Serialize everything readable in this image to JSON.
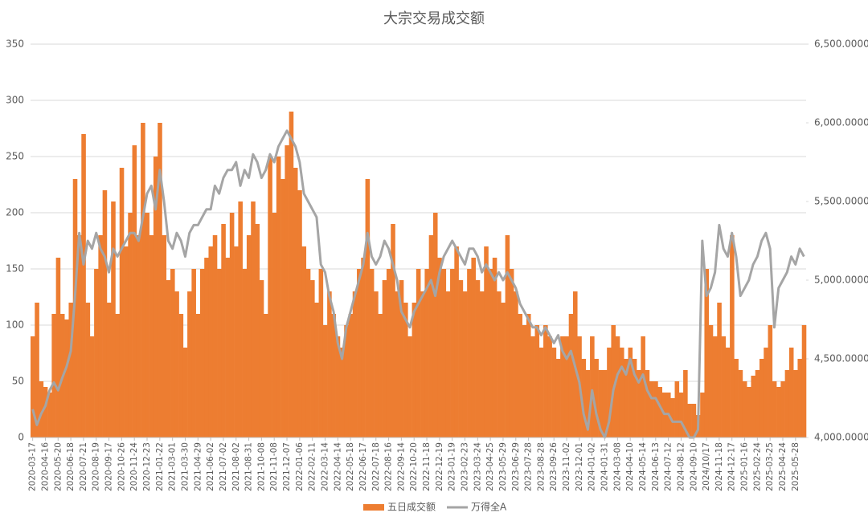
{
  "chart_data": {
    "type": "bar-line",
    "title": "大宗交易成交额",
    "categories": [
      "2020-03-17",
      null,
      null,
      "2020-04-16",
      null,
      null,
      "2020-05-20",
      null,
      null,
      "2020-06-18",
      null,
      null,
      "2020-07-21",
      null,
      null,
      "2020-08-19",
      null,
      null,
      "2020-09-17",
      null,
      null,
      "2020-10-26",
      null,
      null,
      "2020-11-24",
      null,
      null,
      "2020-12-23",
      null,
      null,
      "2021-01-22",
      null,
      null,
      "2021-03-01",
      null,
      null,
      "2021-03-30",
      null,
      null,
      "2021-04-29",
      null,
      null,
      "2021-06-02",
      null,
      null,
      "2021-07-02",
      null,
      null,
      "2021-08-02",
      null,
      null,
      "2021-08-31",
      null,
      null,
      "2021-10-08",
      null,
      null,
      "2021-11-08",
      null,
      null,
      "2021-12-07",
      null,
      null,
      "2022-01-06",
      null,
      null,
      "2022-02-11",
      null,
      null,
      "2022-03-14",
      null,
      null,
      "2022-04-14",
      null,
      null,
      "2022-05-18",
      null,
      null,
      "2022-06-17",
      null,
      null,
      "2022-07-18",
      null,
      null,
      "2022-08-16",
      null,
      null,
      "2022-09-14",
      null,
      null,
      "2022-10-20",
      null,
      null,
      "2022-11-18",
      null,
      null,
      "2022-12-19",
      null,
      null,
      "2023-01-19",
      null,
      null,
      "2023-02-23",
      null,
      null,
      "2023-03-24",
      null,
      null,
      "2023-04-25",
      null,
      null,
      "2023-05-29",
      null,
      null,
      "2023-06-29",
      null,
      null,
      "2023-07-28",
      null,
      null,
      "2023-08-28",
      null,
      null,
      "2023-09-26",
      null,
      null,
      "2023-11-02",
      null,
      null,
      "2023-12-01",
      null,
      null,
      "2024-01-02",
      null,
      null,
      "2024-01-31",
      null,
      null,
      "2024-03-08",
      null,
      null,
      "2024-04-10",
      null,
      null,
      "2024-05-14",
      null,
      null,
      "2024-06-13",
      null,
      null,
      "2024-07-12",
      null,
      null,
      "2024-08-12",
      null,
      null,
      "2024-09-10",
      null,
      null,
      "2024/10/17",
      null,
      null,
      "2024-11-18",
      null,
      null,
      "2024-12-17",
      null,
      null,
      "2025-01-16",
      null,
      null,
      "2025-02-24",
      null,
      null,
      "2025-03-25",
      null,
      null,
      "2025-04-24",
      null,
      null,
      "2025-05-28",
      null,
      null
    ],
    "series": [
      {
        "name": "五日成交额",
        "type": "bar",
        "color": "#ed7d31",
        "values": [
          90,
          120,
          50,
          45,
          40,
          110,
          160,
          110,
          105,
          120,
          230,
          180,
          270,
          120,
          90,
          150,
          180,
          220,
          120,
          210,
          110,
          240,
          170,
          200,
          260,
          180,
          280,
          200,
          180,
          250,
          280,
          180,
          140,
          150,
          130,
          110,
          80,
          130,
          150,
          110,
          150,
          160,
          170,
          180,
          150,
          190,
          160,
          200,
          170,
          210,
          150,
          180,
          210,
          190,
          140,
          110,
          250,
          200,
          250,
          230,
          260,
          290,
          240,
          220,
          170,
          150,
          140,
          120,
          150,
          100,
          130,
          110,
          90,
          80,
          100,
          110,
          130,
          150,
          160,
          230,
          150,
          130,
          110,
          140,
          150,
          190,
          130,
          140,
          120,
          90,
          120,
          150,
          130,
          150,
          180,
          200,
          160,
          150,
          130,
          150,
          170,
          140,
          130,
          150,
          160,
          140,
          130,
          170,
          150,
          160,
          130,
          120,
          180,
          150,
          130,
          110,
          100,
          110,
          90,
          100,
          80,
          100,
          90,
          80,
          70,
          90,
          90,
          110,
          130,
          90,
          70,
          60,
          90,
          70,
          60,
          60,
          80,
          100,
          90,
          80,
          70,
          80,
          70,
          60,
          90,
          60,
          50,
          50,
          45,
          40,
          40,
          35,
          50,
          40,
          60,
          30,
          30,
          20,
          40,
          150,
          100,
          90,
          120,
          90,
          80,
          180,
          70,
          60,
          50,
          45,
          55,
          60,
          70,
          80,
          100,
          50,
          45,
          50,
          60,
          80,
          60,
          70,
          100
        ]
      },
      {
        "name": "万得全A",
        "type": "line",
        "axis": "y2",
        "color": "#a5a5a5",
        "values": [
          4180,
          4080,
          4150,
          4200,
          4300,
          4350,
          4300,
          4380,
          4450,
          4550,
          4900,
          5300,
          5100,
          5250,
          5200,
          5300,
          5200,
          5150,
          5050,
          5200,
          5150,
          5200,
          5250,
          5300,
          5300,
          5250,
          5400,
          5550,
          5600,
          5450,
          5700,
          5500,
          5250,
          5200,
          5300,
          5250,
          5150,
          5300,
          5350,
          5350,
          5400,
          5450,
          5450,
          5600,
          5550,
          5650,
          5700,
          5700,
          5750,
          5600,
          5700,
          5650,
          5800,
          5750,
          5650,
          5700,
          5800,
          5750,
          5850,
          5900,
          5950,
          5900,
          5850,
          5750,
          5550,
          5500,
          5450,
          5400,
          5100,
          5050,
          4900,
          4800,
          4600,
          4500,
          4700,
          4800,
          4900,
          5000,
          5100,
          5300,
          5150,
          5100,
          5150,
          5250,
          5200,
          5100,
          5000,
          4800,
          4750,
          4700,
          4800,
          4850,
          4900,
          4950,
          5000,
          4900,
          5050,
          5150,
          5200,
          5250,
          5200,
          5150,
          5100,
          5200,
          5200,
          5150,
          5050,
          5100,
          5050,
          5000,
          5050,
          5000,
          5050,
          5000,
          4950,
          4850,
          4800,
          4750,
          4700,
          4700,
          4650,
          4700,
          4650,
          4600,
          4650,
          4550,
          4500,
          4550,
          4450,
          4350,
          4150,
          4050,
          4300,
          4150,
          4050,
          4000,
          4100,
          4300,
          4400,
          4450,
          4400,
          4500,
          4400,
          4350,
          4400,
          4300,
          4250,
          4250,
          4200,
          4150,
          4150,
          4100,
          4100,
          4100,
          4050,
          4000,
          4000,
          4050,
          5250,
          4900,
          4950,
          5050,
          5350,
          5200,
          5150,
          5300,
          5150,
          4900,
          4950,
          5000,
          5100,
          5150,
          5250,
          5300,
          5200,
          4700,
          4950,
          5000,
          5050,
          5150,
          5100,
          5200,
          5150
        ]
      }
    ],
    "ylim": [
      0,
      350
    ],
    "yticks": [
      0,
      50,
      100,
      150,
      200,
      250,
      300,
      350
    ],
    "y2lim": [
      4000,
      6500
    ],
    "y2ticks": [
      {
        "value": 4000,
        "label": "4,000.0000"
      },
      {
        "value": 4500,
        "label": "4,500.0000"
      },
      {
        "value": 5000,
        "label": "5,000.0000"
      },
      {
        "value": 5500,
        "label": "5,500.0000"
      },
      {
        "value": 6000,
        "label": "6,000.0000"
      },
      {
        "value": 6500,
        "label": "6,500.0000"
      }
    ],
    "grid": true,
    "legend": "bottom"
  }
}
